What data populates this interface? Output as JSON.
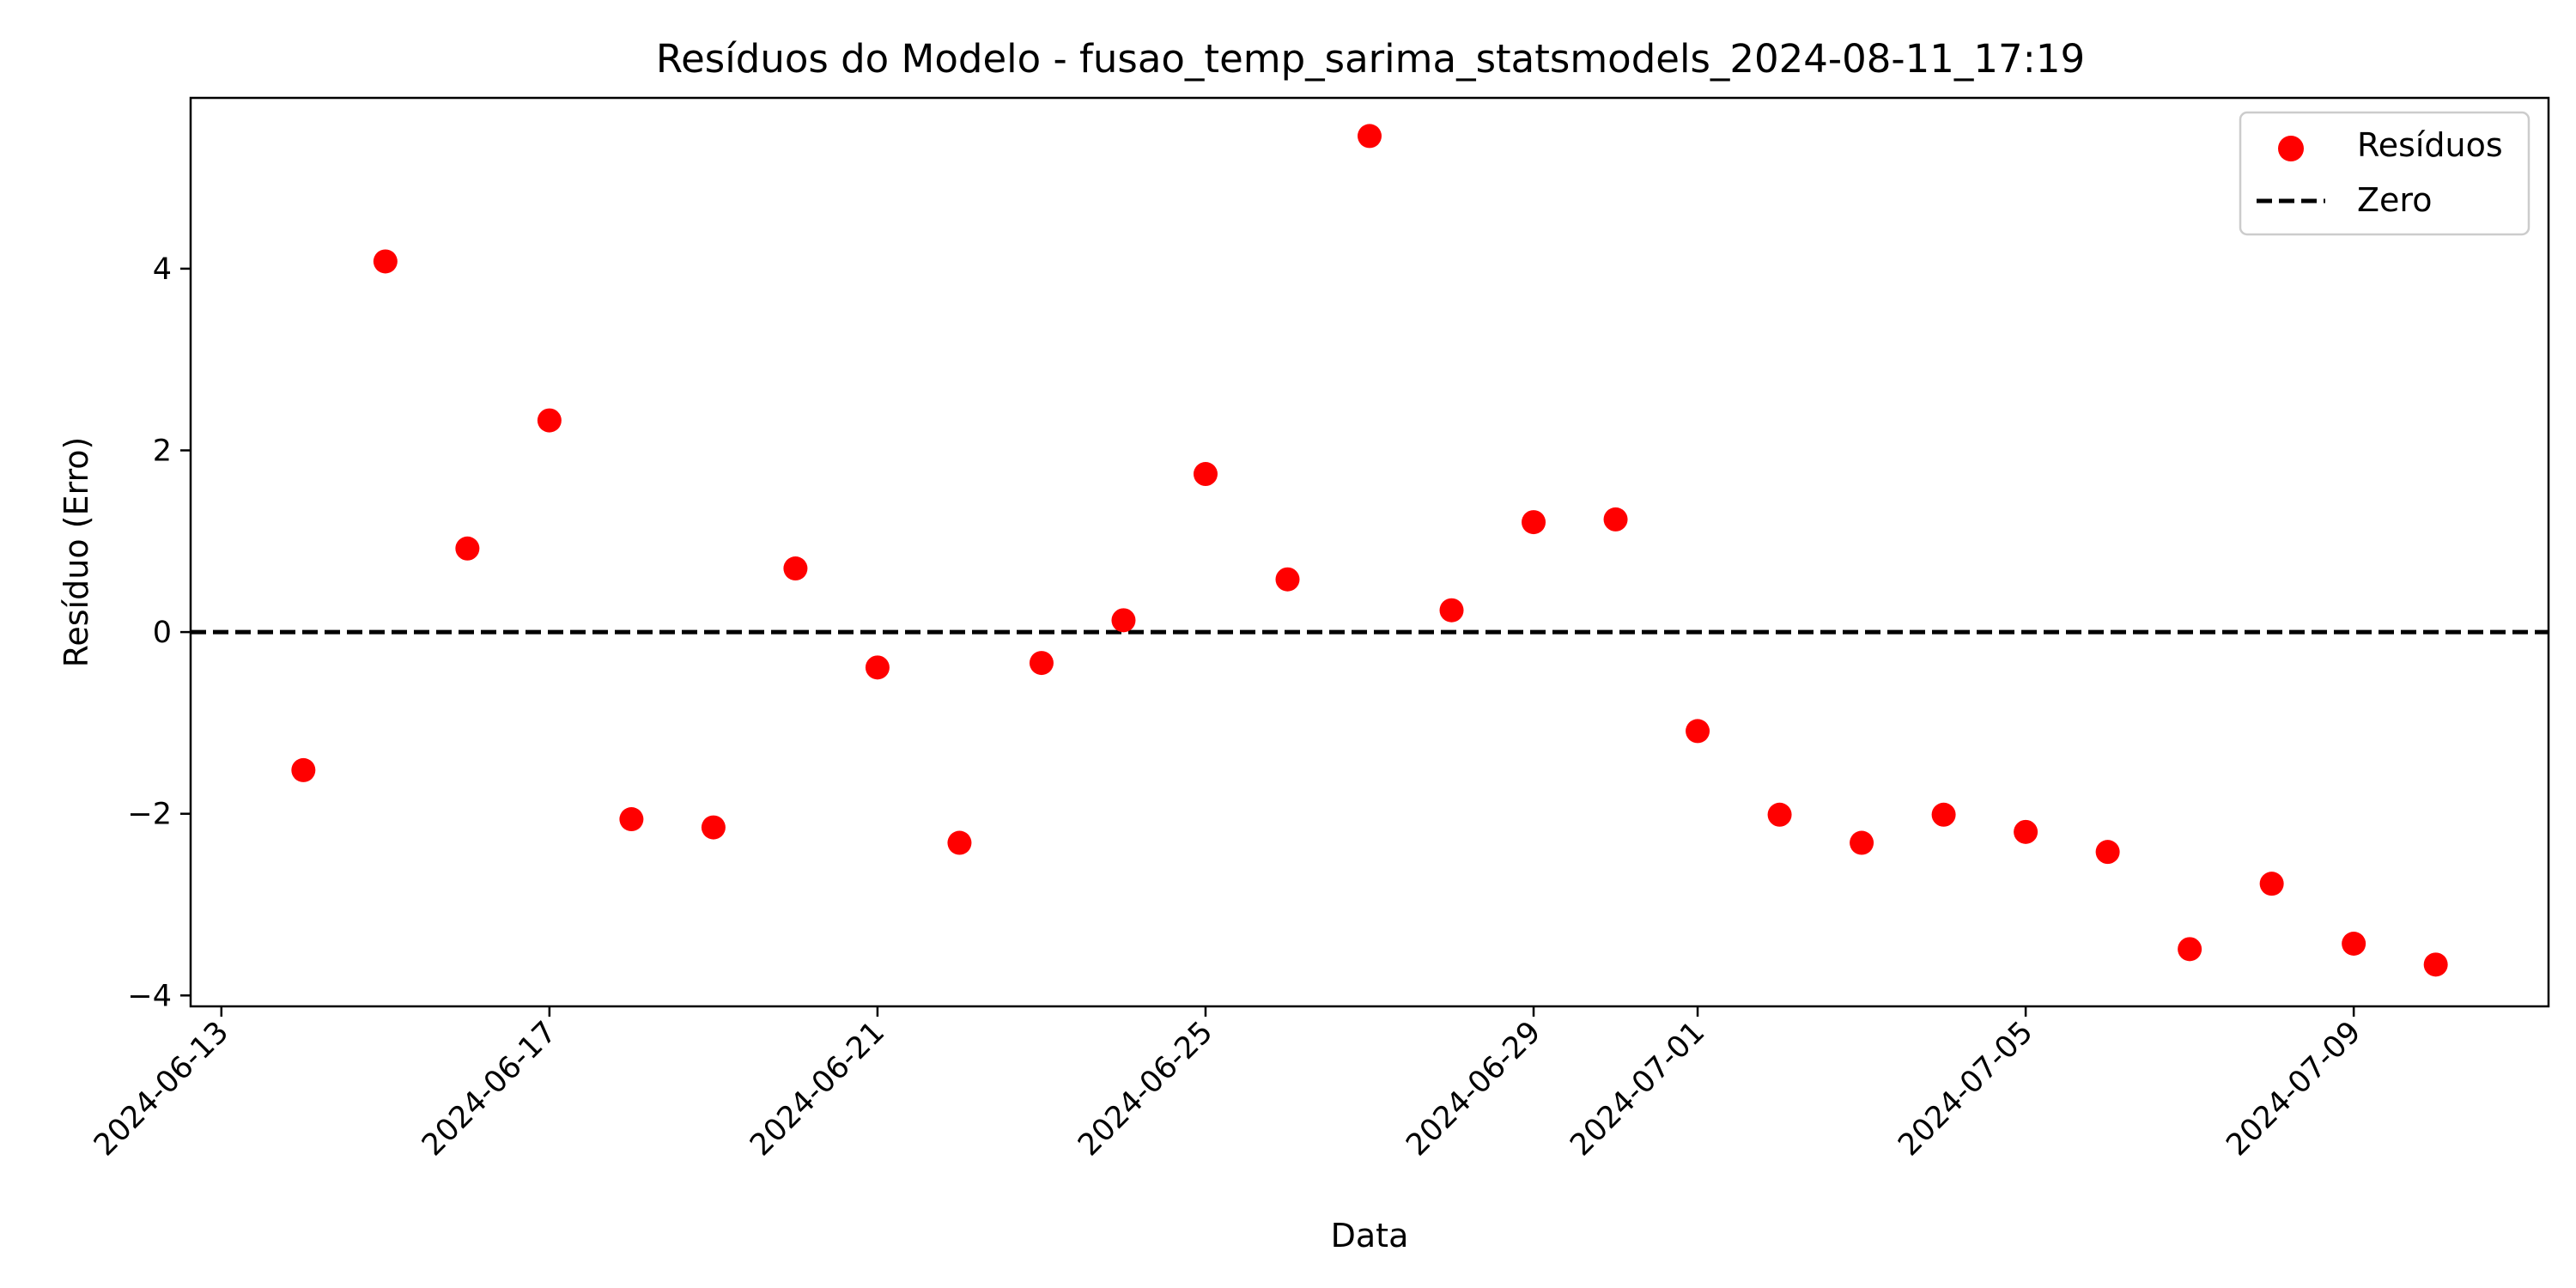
{
  "chart_data": {
    "type": "scatter",
    "title": "Resíduos do Modelo - fusao_temp_sarima_statsmodels_2024-08-11_17:19",
    "xlabel": "Data",
    "ylabel": "Resíduo (Erro)",
    "xlim": [
      "2024-06-12T15:00",
      "2024-07-11T09:00"
    ],
    "ylim": [
      -4.12,
      5.88
    ],
    "x_ticks": [
      "2024-06-13",
      "2024-06-17",
      "2024-06-21",
      "2024-06-25",
      "2024-06-29",
      "2024-07-01",
      "2024-07-05",
      "2024-07-09"
    ],
    "y_ticks": [
      4,
      2,
      0,
      -2,
      -4
    ],
    "y_tick_labels": [
      "4",
      "2",
      "0",
      "−2",
      "−4"
    ],
    "grid": false,
    "legend_position": "top-right",
    "series": [
      {
        "name": "Resíduos",
        "color": "#ff0000",
        "marker": "circle",
        "points": [
          {
            "x": "2024-06-14",
            "y": -1.52
          },
          {
            "x": "2024-06-15",
            "y": 4.08
          },
          {
            "x": "2024-06-16",
            "y": 0.92
          },
          {
            "x": "2024-06-17",
            "y": 2.33
          },
          {
            "x": "2024-06-18",
            "y": -2.06
          },
          {
            "x": "2024-06-19",
            "y": -2.15
          },
          {
            "x": "2024-06-20",
            "y": 0.7
          },
          {
            "x": "2024-06-21",
            "y": -0.39
          },
          {
            "x": "2024-06-22",
            "y": -2.32
          },
          {
            "x": "2024-06-23",
            "y": -0.34
          },
          {
            "x": "2024-06-24",
            "y": 0.13
          },
          {
            "x": "2024-06-25",
            "y": 1.74
          },
          {
            "x": "2024-06-26",
            "y": 0.58
          },
          {
            "x": "2024-06-27",
            "y": 5.46
          },
          {
            "x": "2024-06-28",
            "y": 0.24
          },
          {
            "x": "2024-06-29",
            "y": 1.21
          },
          {
            "x": "2024-06-30",
            "y": 1.24
          },
          {
            "x": "2024-07-01",
            "y": -1.09
          },
          {
            "x": "2024-07-02",
            "y": -2.01
          },
          {
            "x": "2024-07-03",
            "y": -2.32
          },
          {
            "x": "2024-07-04",
            "y": -2.01
          },
          {
            "x": "2024-07-05",
            "y": -2.2
          },
          {
            "x": "2024-07-06",
            "y": -2.42
          },
          {
            "x": "2024-07-07",
            "y": -3.49
          },
          {
            "x": "2024-07-08",
            "y": -2.77
          },
          {
            "x": "2024-07-09",
            "y": -3.43
          },
          {
            "x": "2024-07-10",
            "y": -3.66
          }
        ]
      },
      {
        "name": "Zero",
        "type": "hline",
        "y": 0,
        "color": "#000000",
        "style": "dashed"
      }
    ]
  }
}
